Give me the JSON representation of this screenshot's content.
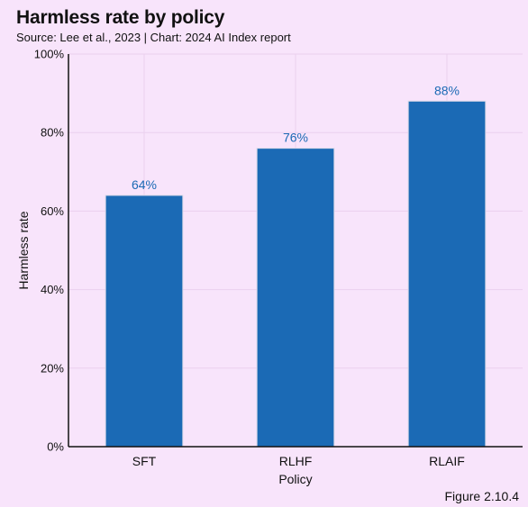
{
  "header": {
    "title": "Harmless rate by policy",
    "subtitle": "Source: Lee et al., 2023 | Chart: 2024 AI Index report"
  },
  "footer": {
    "figure_label": "Figure 2.10.4"
  },
  "colors": {
    "bar": "#1b6ab5",
    "data_label": "#1b6ab5",
    "background": "#f8e4fb"
  },
  "chart_data": {
    "type": "bar",
    "categories": [
      "SFT",
      "RLHF",
      "RLAIF"
    ],
    "values": [
      64,
      76,
      88
    ],
    "data_labels": [
      "64%",
      "76%",
      "88%"
    ],
    "xlabel": "Policy",
    "ylabel": "Harmless rate",
    "ylim": [
      0,
      100
    ],
    "yticks": [
      0,
      20,
      40,
      60,
      80,
      100
    ],
    "ytick_labels": [
      "0%",
      "20%",
      "40%",
      "60%",
      "80%",
      "100%"
    ],
    "grid": true
  }
}
